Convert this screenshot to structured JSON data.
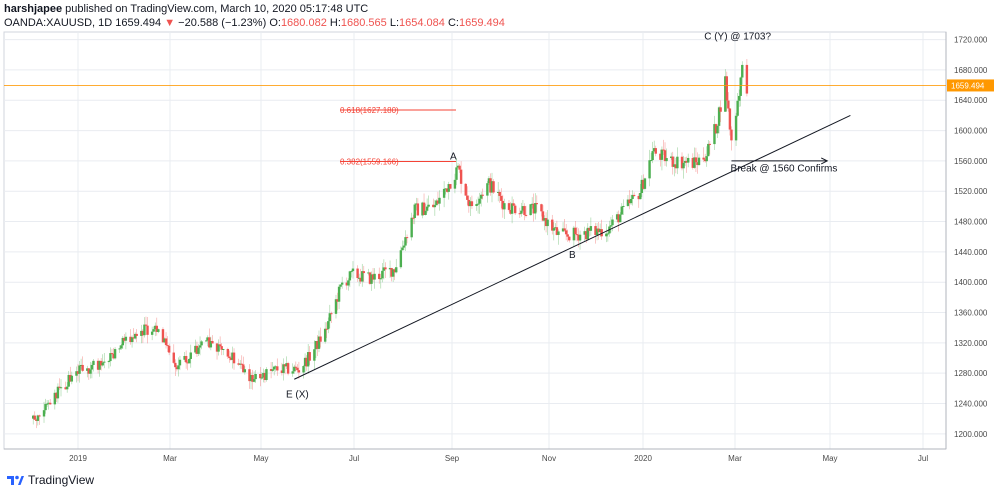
{
  "header": {
    "user": "harshjapee",
    "published_text": "published on TradingView.com, March 10, 2020 05:17:48 UTC",
    "symbol": "OANDA:XAUUSD, 1D",
    "last": "1659.494",
    "arrow": "▼",
    "change": "−20.588 (−1.23%)",
    "o_label": "O:",
    "o_value": "1680.082",
    "h_label": "H:",
    "h_value": "1680.565",
    "l_label": "L:",
    "l_value": "1654.084",
    "c_label": "C:",
    "c_value": "1659.494"
  },
  "footer": {
    "brand": "TradingView"
  },
  "colors": {
    "up": "#4caf50",
    "down": "#ef5350",
    "price_line": "#ff9800",
    "fib": "#f44336",
    "grid": "#e9ecf1",
    "axis_text": "#4a4a4a"
  },
  "chart_data": {
    "type": "candlestick",
    "symbol": "OANDA:XAUUSD",
    "interval": "1D",
    "x": [
      "2019",
      "Mar",
      "May",
      "Jul",
      "Sep",
      "Nov",
      "2020",
      "Mar",
      "May",
      "Jul"
    ],
    "ylim": [
      1180,
      1730
    ],
    "y_ticks": [
      "1200.000",
      "1240.000",
      "1280.000",
      "1320.000",
      "1360.000",
      "1400.000",
      "1440.000",
      "1480.000",
      "1520.000",
      "1560.000",
      "1600.000",
      "1640.000",
      "1680.000",
      "1720.000"
    ],
    "current_price": "1659.494",
    "price_path": [
      [
        "2018-12-03",
        1220
      ],
      [
        "2018-12-15",
        1245
      ],
      [
        "2018-12-31",
        1282
      ],
      [
        "2019-01-15",
        1292
      ],
      [
        "2019-01-31",
        1320
      ],
      [
        "2019-02-20",
        1345
      ],
      [
        "2019-03-05",
        1285
      ],
      [
        "2019-03-25",
        1320
      ],
      [
        "2019-04-10",
        1305
      ],
      [
        "2019-04-23",
        1272
      ],
      [
        "2019-05-10",
        1285
      ],
      [
        "2019-05-24",
        1285
      ],
      [
        "2019-05-31",
        1302
      ],
      [
        "2019-06-10",
        1335
      ],
      [
        "2019-06-21",
        1398
      ],
      [
        "2019-06-28",
        1410
      ],
      [
        "2019-07-10",
        1405
      ],
      [
        "2019-07-25",
        1418
      ],
      [
        "2019-08-07",
        1495
      ],
      [
        "2019-08-20",
        1500
      ],
      [
        "2019-09-04",
        1550
      ],
      [
        "2019-09-12",
        1500
      ],
      [
        "2019-09-24",
        1530
      ],
      [
        "2019-10-05",
        1500
      ],
      [
        "2019-10-25",
        1495
      ],
      [
        "2019-11-08",
        1462
      ],
      [
        "2019-11-20",
        1463
      ],
      [
        "2019-12-10",
        1470
      ],
      [
        "2019-12-31",
        1520
      ],
      [
        "2020-01-08",
        1572
      ],
      [
        "2020-01-20",
        1560
      ],
      [
        "2020-02-05",
        1557
      ],
      [
        "2020-02-12",
        1570
      ],
      [
        "2020-02-18",
        1605
      ],
      [
        "2020-02-24",
        1665
      ],
      [
        "2020-02-28",
        1585
      ],
      [
        "2020-03-03",
        1640
      ],
      [
        "2020-03-06",
        1680
      ],
      [
        "2020-03-09",
        1659.494
      ]
    ],
    "trendline": {
      "from": [
        "2019-05-21",
        1272
      ],
      "to": [
        "2020-05-15",
        1620
      ]
    },
    "break_arrow": {
      "from": [
        "2020-02-28",
        1560
      ],
      "to": [
        "2020-04-30",
        1560
      ]
    },
    "fib_levels": [
      {
        "label": "0.618(1627.180)",
        "value": 1627.18
      },
      {
        "label": "0.382(1559.166)",
        "value": 1559.166
      }
    ],
    "annotations": [
      {
        "text": "C (Y) @ 1703?",
        "at": [
          "2020-03-03",
          1720
        ]
      },
      {
        "text": "A",
        "at": [
          "2019-09-01",
          1562
        ]
      },
      {
        "text": "B",
        "at": [
          "2019-11-17",
          1432
        ]
      },
      {
        "text": "E (X)",
        "at": [
          "2019-05-23",
          1248
        ]
      },
      {
        "text": "Break @ 1560 Confirms",
        "at": [
          "2020-04-02",
          1546
        ]
      }
    ],
    "grid": true,
    "legend": "none"
  }
}
